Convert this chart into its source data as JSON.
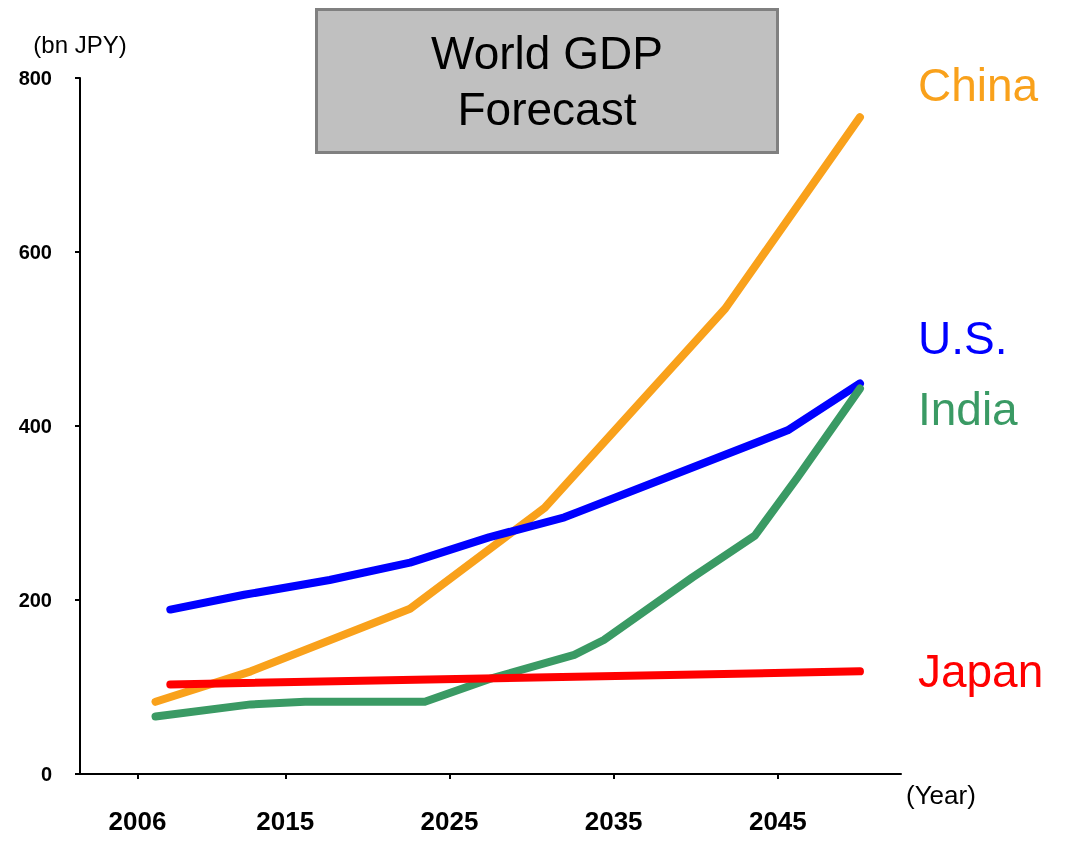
{
  "chart_data": {
    "type": "line",
    "title": "World GDP Forecast",
    "ylabel": "(bn JPY)",
    "xlabel": "(Year)",
    "xlim": [
      2002.5,
      2052.5
    ],
    "xticks": [
      2006,
      2015,
      2025,
      2035,
      2045
    ],
    "ylim": [
      0,
      800
    ],
    "yticks": [
      0,
      200,
      400,
      600,
      800
    ],
    "grid": false,
    "marker": "none",
    "line_style": "solid",
    "series": [
      {
        "name": "China",
        "color": "#f9a11b",
        "x": [
          2007.1,
          2012.9,
          2022.6,
          2030.8,
          2041.8,
          2050
        ],
        "values": [
          83,
          118,
          190,
          306,
          535,
          755
        ]
      },
      {
        "name": "U.S.",
        "color": "#0000ff",
        "x": [
          2008,
          2012.5,
          2017.7,
          2022.6,
          2027.4,
          2032,
          2045.6,
          2050
        ],
        "values": [
          189,
          206,
          223,
          243,
          272,
          295,
          395,
          449
        ]
      },
      {
        "name": "India",
        "color": "#3a9a64",
        "x": [
          2007.1,
          2012.9,
          2016.2,
          2023.5,
          2027.4,
          2032.6,
          2034.4,
          2039.8,
          2043.6,
          2046.2,
          2050
        ],
        "values": [
          66,
          80,
          83,
          83,
          109,
          137,
          154,
          226,
          274,
          341,
          443
        ]
      },
      {
        "name": "Japan",
        "color": "#ff0000",
        "x": [
          2008,
          2050
        ],
        "values": [
          103,
          118
        ]
      }
    ]
  }
}
